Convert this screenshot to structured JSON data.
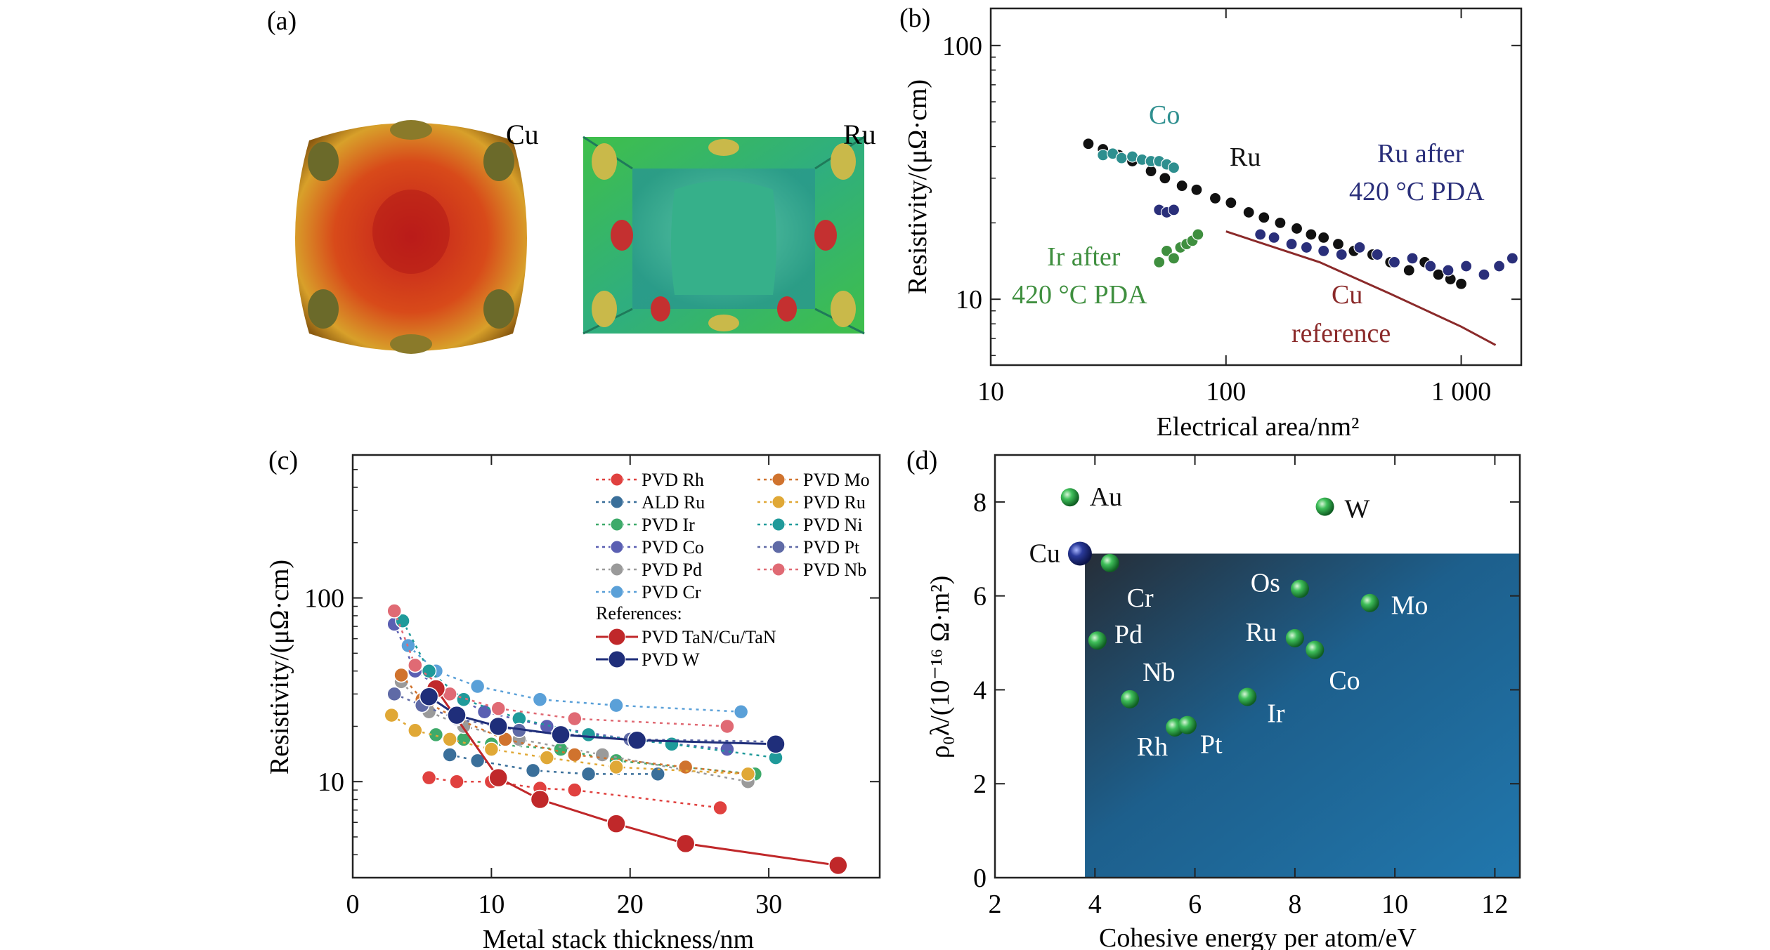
{
  "panels": {
    "a": {
      "label": "(a)",
      "cu_label": "Cu",
      "ru_label": "Ru"
    }
  },
  "colors": {
    "black": "#111111",
    "co": "#2e8f8f",
    "ru_pda": "#2a2f7a",
    "ir": "#3f8f3f",
    "cu_ref": "#8b2a2a",
    "rh_series": "#d23a3a",
    "w_ref": "#1f2e7a",
    "panel_d_fill": "#1f6ea0"
  },
  "chart_data": [
    {
      "panel": "b",
      "type": "scatter",
      "label": "(b)",
      "xlabel": "Electrical area/nm²",
      "ylabel": "Resistivity/(μΩ·cm)",
      "xscale": "log",
      "yscale": "log",
      "xlim": [
        10,
        1800
      ],
      "ylim": [
        5.5,
        140
      ],
      "xticks": [
        10,
        100,
        1000
      ],
      "xtick_labels": [
        "10",
        "100",
        "1 000"
      ],
      "yticks": [
        10,
        100
      ],
      "ytick_labels": [
        "10",
        "100"
      ],
      "annotations": [
        {
          "text": "Co",
          "color_key": "co"
        },
        {
          "text": "Ru",
          "color_key": "black"
        },
        {
          "text": "Ru after",
          "color_key": "ru_pda"
        },
        {
          "text": "420 °C PDA",
          "color_key": "ru_pda"
        },
        {
          "text": "Ir after",
          "color_key": "ir"
        },
        {
          "text": "420 °C PDA",
          "color_key": "ir"
        },
        {
          "text": "Cu",
          "color_key": "cu_ref"
        },
        {
          "text": "reference",
          "color_key": "cu_ref"
        }
      ],
      "series": [
        {
          "key": "ru",
          "color_key": "black",
          "kind": "points",
          "x": [
            26,
            30,
            35,
            40,
            48,
            55,
            65,
            75,
            90,
            105,
            125,
            145,
            170,
            200,
            230,
            260,
            300,
            350,
            420,
            500,
            600,
            700,
            800,
            900,
            1000
          ],
          "y": [
            41,
            39,
            37,
            35,
            32,
            30,
            28,
            27,
            25,
            24,
            22,
            21,
            20,
            19,
            18,
            17.5,
            16.5,
            15.5,
            15,
            14,
            13,
            14,
            12.5,
            12,
            11.5
          ]
        },
        {
          "key": "co",
          "color_key": "co",
          "kind": "points",
          "x": [
            30,
            33,
            36,
            40,
            44,
            48,
            52,
            56,
            60
          ],
          "y": [
            37,
            37.5,
            36,
            36.5,
            35.5,
            35,
            35,
            34,
            33
          ]
        },
        {
          "key": "ru_pda",
          "color_key": "ru_pda",
          "kind": "points",
          "x": [
            52,
            56,
            60,
            140,
            160,
            190,
            220,
            260,
            310,
            370,
            440,
            520,
            620,
            740,
            880,
            1050,
            1250,
            1450,
            1650
          ],
          "y": [
            22.5,
            22,
            22.5,
            18,
            17.5,
            16.5,
            16,
            15.5,
            15,
            16,
            15,
            14,
            14.5,
            13.5,
            13,
            13.5,
            12.5,
            13.5,
            14.5
          ]
        },
        {
          "key": "ir_pda",
          "color_key": "ir",
          "kind": "points",
          "x": [
            52,
            56,
            60,
            64,
            68,
            72,
            76
          ],
          "y": [
            14,
            15.5,
            14.5,
            16,
            16.5,
            17,
            18
          ]
        },
        {
          "key": "cu_reference",
          "color_key": "cu_ref",
          "kind": "line",
          "x": [
            100,
            250,
            500,
            1000,
            1400
          ],
          "y": [
            18.5,
            14,
            10.5,
            7.8,
            6.6
          ]
        }
      ]
    },
    {
      "panel": "c",
      "type": "line",
      "label": "(c)",
      "xlabel": "Metal stack thickness/nm",
      "ylabel": "Resistivity/(μΩ·cm)",
      "xscale": "linear",
      "yscale": "log",
      "xlim": [
        0,
        38
      ],
      "ylim": [
        3,
        600
      ],
      "xticks": [
        0,
        10,
        20,
        30
      ],
      "xtick_labels": [
        "0",
        "10",
        "20",
        "30"
      ],
      "yticks": [
        10,
        100
      ],
      "ytick_labels": [
        "10",
        "100"
      ],
      "legend_title": "References:",
      "series": [
        {
          "name": "PVD Rh",
          "color": "#e0413f",
          "style": "dotted",
          "x": [
            5.5,
            7.5,
            10,
            13.5,
            16,
            26.5
          ],
          "y": [
            10.5,
            10,
            10,
            9.2,
            9,
            7.2
          ]
        },
        {
          "name": "ALD Ru",
          "color": "#3a6f9a",
          "style": "dotted",
          "x": [
            7,
            9,
            13,
            17,
            22
          ],
          "y": [
            14,
            13,
            11.5,
            11,
            11
          ]
        },
        {
          "name": "PVD Ir",
          "color": "#3eaa6a",
          "style": "dotted",
          "x": [
            6,
            8,
            10,
            15,
            19,
            29
          ],
          "y": [
            18,
            17,
            16,
            15,
            13,
            11
          ]
        },
        {
          "name": "PVD Co",
          "color": "#5a5fb2",
          "style": "dotted",
          "x": [
            3,
            4.5,
            7,
            9.5,
            14,
            20,
            27
          ],
          "y": [
            72,
            40,
            30,
            24,
            20,
            17,
            15
          ]
        },
        {
          "name": "PVD Pd",
          "color": "#9a9a9a",
          "style": "dotted",
          "x": [
            3.5,
            5.5,
            8,
            12,
            18,
            28.5
          ],
          "y": [
            35,
            24,
            20,
            17,
            14,
            10
          ]
        },
        {
          "name": "PVD Cr",
          "color": "#5aa0d8",
          "style": "dotted",
          "x": [
            4,
            6,
            9,
            13.5,
            19,
            28
          ],
          "y": [
            55,
            40,
            33,
            28,
            26,
            24
          ]
        },
        {
          "name": "PVD Mo",
          "color": "#d0732e",
          "style": "dotted",
          "x": [
            3.5,
            5,
            7.5,
            11,
            16,
            24,
            28.5
          ],
          "y": [
            38,
            28,
            22,
            17,
            14,
            12,
            11
          ]
        },
        {
          "name": "PVD Ru",
          "color": "#e0a836",
          "style": "dotted",
          "x": [
            2.8,
            4.5,
            7,
            10,
            14,
            19,
            28.5
          ],
          "y": [
            23,
            19,
            17,
            15,
            13.5,
            12,
            11
          ]
        },
        {
          "name": "PVD Ni",
          "color": "#1f9a9a",
          "style": "dotted",
          "x": [
            3.6,
            5.5,
            8,
            12,
            17,
            23,
            30.5
          ],
          "y": [
            75,
            40,
            28,
            22,
            18,
            16,
            13.5
          ]
        },
        {
          "name": "PVD Pt",
          "color": "#5f6aa6",
          "style": "dotted",
          "x": [
            3,
            5,
            7.5,
            12,
            20,
            30.5
          ],
          "y": [
            30,
            26,
            22,
            19,
            17,
            16.5
          ]
        },
        {
          "name": "PVD Nb",
          "color": "#e06a74",
          "style": "dotted",
          "x": [
            3,
            4.5,
            7,
            10.5,
            16,
            27
          ],
          "y": [
            85,
            43,
            30,
            25,
            22,
            20
          ]
        },
        {
          "name": "PVD TaN/Cu/TaN",
          "color": "#c0282a",
          "style": "solid",
          "reference": true,
          "x": [
            6,
            10.5,
            13.5,
            19,
            24,
            35
          ],
          "y": [
            32,
            10.5,
            8,
            5.9,
            4.6,
            3.5
          ]
        },
        {
          "name": "PVD W",
          "color": "#1f2e7a",
          "style": "solid",
          "reference": true,
          "x": [
            5.5,
            7.5,
            10.5,
            15,
            20.5,
            30.5
          ],
          "y": [
            29,
            23,
            20,
            18,
            16.8,
            16
          ]
        }
      ]
    },
    {
      "panel": "d",
      "type": "scatter",
      "label": "(d)",
      "xlabel": "Cohesive energy per atom/eV",
      "ylabel": "ρ₀λ/(10⁻¹⁶ Ω·m²)",
      "xscale": "linear",
      "yscale": "linear",
      "xlim": [
        2,
        12.5
      ],
      "ylim": [
        0,
        9
      ],
      "xticks": [
        2,
        4,
        6,
        8,
        10,
        12
      ],
      "xtick_labels": [
        "2",
        "4",
        "6",
        "8",
        "10",
        "12"
      ],
      "yticks": [
        0,
        2,
        4,
        6,
        8
      ],
      "ytick_labels": [
        "0",
        "2",
        "4",
        "6",
        "8"
      ],
      "region": {
        "x0": 3.8,
        "y1": 6.9
      },
      "points": [
        {
          "name": "Au",
          "x": 3.5,
          "y": 8.1,
          "ref": false
        },
        {
          "name": "W",
          "x": 8.6,
          "y": 7.9,
          "ref": false
        },
        {
          "name": "Cu",
          "x": 3.7,
          "y": 6.9,
          "ref": true
        },
        {
          "name": "Cr",
          "x": 4.3,
          "y": 6.7,
          "ref": false
        },
        {
          "name": "Os",
          "x": 8.1,
          "y": 6.15,
          "ref": false
        },
        {
          "name": "Mo",
          "x": 9.5,
          "y": 5.85,
          "ref": false
        },
        {
          "name": "Pd",
          "x": 4.05,
          "y": 5.05,
          "ref": false
        },
        {
          "name": "Ru",
          "x": 8.0,
          "y": 5.1,
          "ref": false
        },
        {
          "name": "Co",
          "x": 8.4,
          "y": 4.85,
          "ref": false
        },
        {
          "name": "Nb",
          "x": 4.7,
          "y": 3.8,
          "ref": false
        },
        {
          "name": "Ir",
          "x": 7.05,
          "y": 3.85,
          "ref": false
        },
        {
          "name": "Rh",
          "x": 5.6,
          "y": 3.2,
          "ref": false
        },
        {
          "name": "Pt",
          "x": 5.85,
          "y": 3.25,
          "ref": false
        }
      ]
    }
  ]
}
